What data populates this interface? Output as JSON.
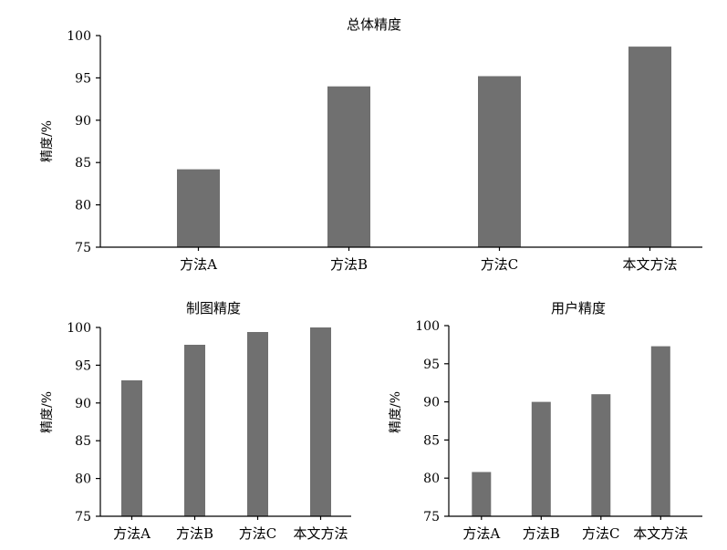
{
  "chart_data": [
    {
      "type": "bar",
      "title": "总体精度",
      "ylabel": "精度/%",
      "xlabel": "",
      "categories": [
        "方法A",
        "方法B",
        "方法C",
        "本文方法"
      ],
      "values": [
        84.2,
        94.0,
        95.2,
        98.7
      ],
      "ylim": [
        75,
        100
      ],
      "yticks": [
        75,
        80,
        85,
        90,
        95,
        100
      ],
      "bar_color": "#707070",
      "grid": false,
      "legend": "none"
    },
    {
      "type": "bar",
      "title": "制图精度",
      "ylabel": "精度/%",
      "xlabel": "",
      "categories": [
        "方法A",
        "方法B",
        "方法C",
        "本文方法"
      ],
      "values": [
        93.0,
        97.7,
        99.4,
        100.0
      ],
      "ylim": [
        75,
        100
      ],
      "yticks": [
        75,
        80,
        85,
        90,
        95,
        100
      ],
      "bar_color": "#707070",
      "grid": false,
      "legend": "none"
    },
    {
      "type": "bar",
      "title": "用户精度",
      "ylabel": "精度/%",
      "xlabel": "",
      "categories": [
        "方法A",
        "方法B",
        "方法C",
        "本文方法"
      ],
      "values": [
        80.8,
        90.0,
        91.0,
        97.3
      ],
      "ylim": [
        75,
        100
      ],
      "yticks": [
        75,
        80,
        85,
        90,
        95,
        100
      ],
      "bar_color": "#707070",
      "grid": false,
      "legend": "none"
    }
  ]
}
